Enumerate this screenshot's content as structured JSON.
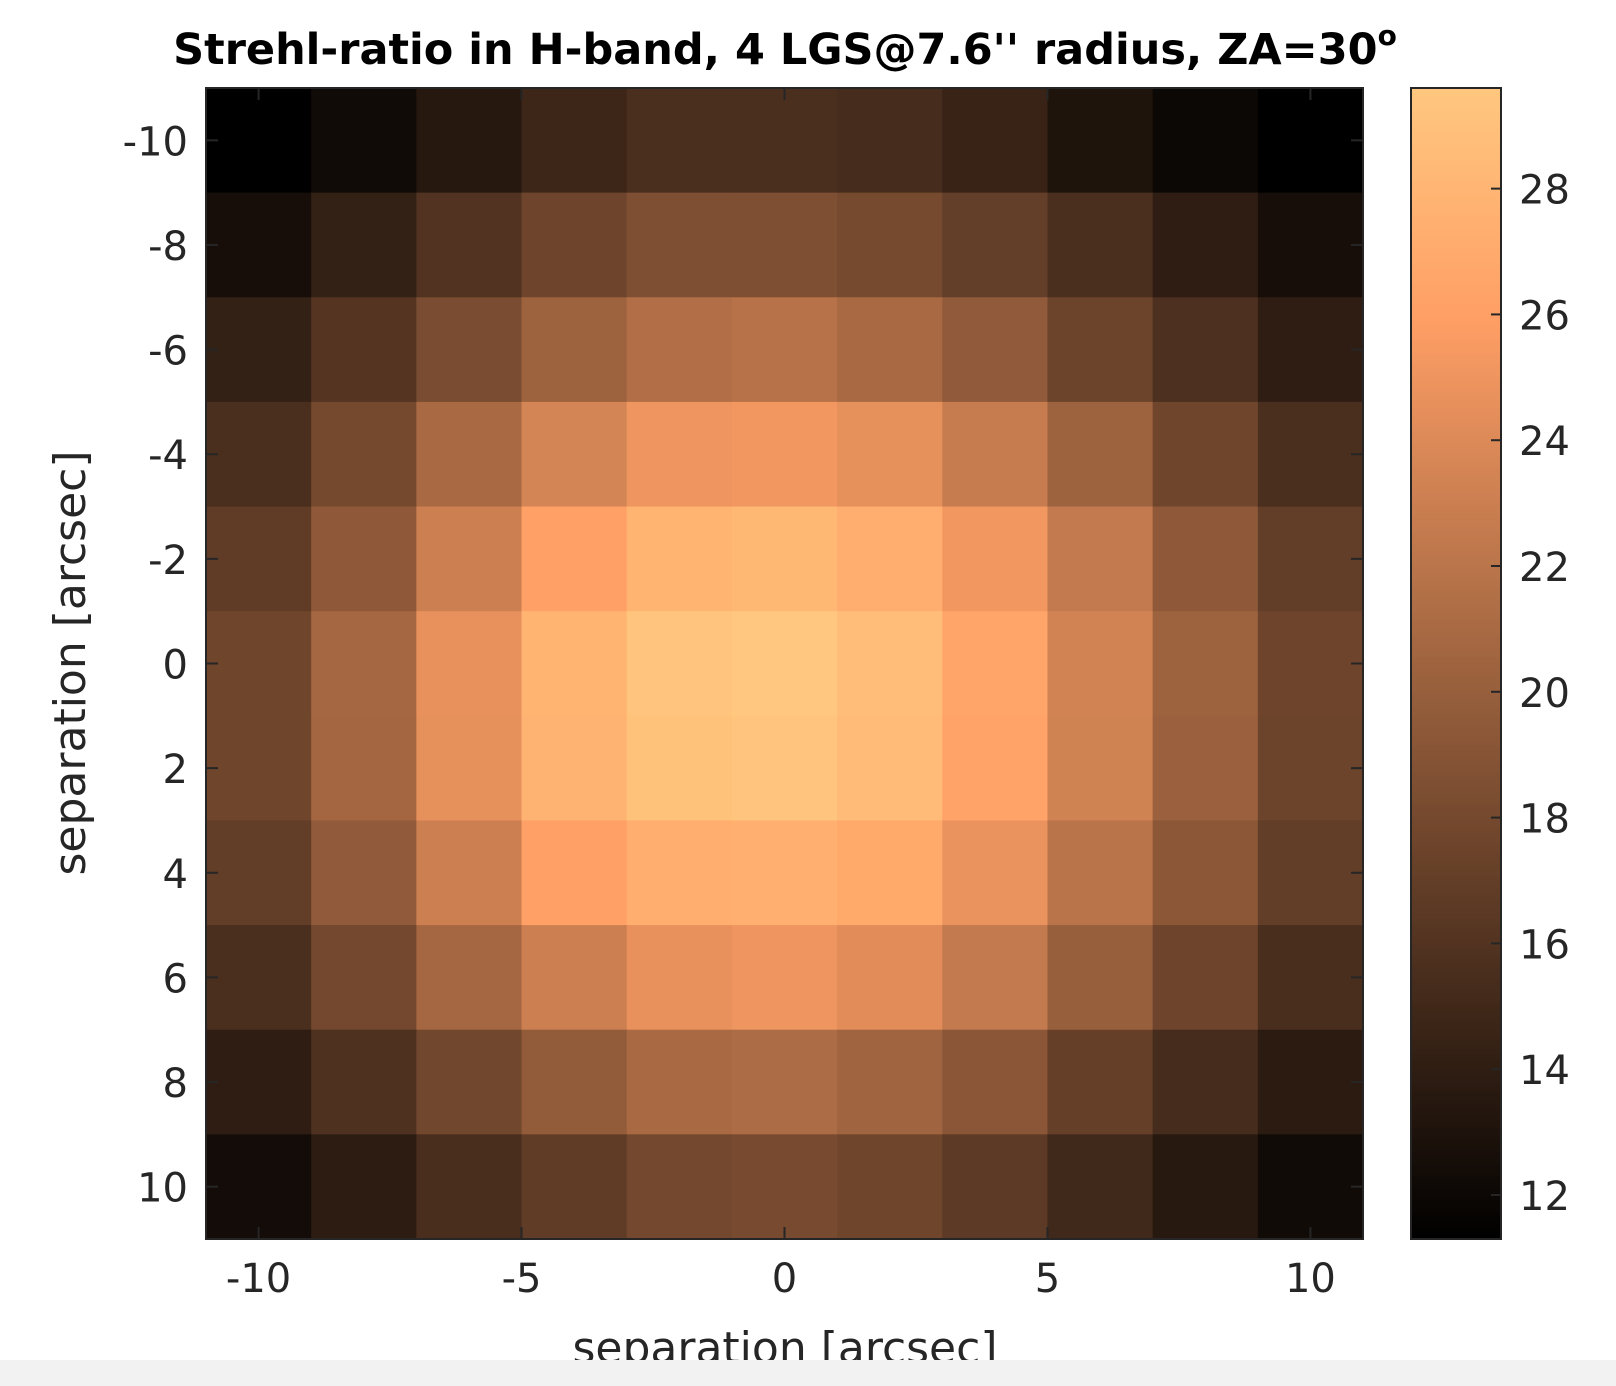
{
  "chart_data": {
    "type": "heatmap",
    "title": "Strehl-ratio in H-band, 4 LGS@7.6'' radius, ZA=30",
    "title_superscript": "o",
    "xlabel": "separation [arcsec]",
    "ylabel": "separation [arcsec]",
    "x": [
      -10,
      -8,
      -6,
      -4,
      -2,
      0,
      2,
      4,
      6,
      8,
      10
    ],
    "y": [
      -10,
      -8,
      -6,
      -4,
      -2,
      0,
      2,
      4,
      6,
      8,
      10
    ],
    "xlim": [
      -11,
      11
    ],
    "ylim": [
      -11,
      11
    ],
    "y_reversed": true,
    "xticks": [
      -10,
      -5,
      0,
      5,
      10
    ],
    "xtick_labels": [
      "-10",
      "-5",
      "0",
      "5",
      "10"
    ],
    "yticks": [
      -10,
      -8,
      -6,
      -4,
      -2,
      0,
      2,
      4,
      6,
      8,
      10
    ],
    "ytick_labels": [
      "-10",
      "-8",
      "-6",
      "-4",
      "-2",
      "0",
      "2",
      "4",
      "6",
      "8",
      "10"
    ],
    "colormap": "copper",
    "colorbar": {
      "clim": [
        11.3,
        29.6
      ],
      "ticks": [
        12,
        14,
        16,
        18,
        20,
        22,
        24,
        26,
        28
      ],
      "tick_labels": [
        "12",
        "14",
        "16",
        "18",
        "20",
        "22",
        "24",
        "26",
        "28"
      ]
    },
    "z": [
      [
        11.3,
        12.3,
        13.5,
        14.8,
        15.6,
        15.6,
        15.3,
        14.5,
        13.1,
        12.0,
        11.3
      ],
      [
        12.6,
        14.3,
        16.0,
        17.6,
        18.6,
        18.6,
        18.1,
        17.0,
        15.6,
        14.0,
        12.6
      ],
      [
        14.3,
        16.2,
        18.3,
        20.3,
        21.5,
        21.8,
        21.0,
        19.6,
        17.5,
        15.7,
        14.0
      ],
      [
        15.6,
        18.0,
        21.0,
        23.5,
        25.0,
        25.2,
        24.5,
        22.7,
        20.3,
        17.7,
        15.6
      ],
      [
        16.8,
        19.5,
        23.0,
        26.0,
        27.8,
        28.1,
        27.3,
        25.2,
        22.5,
        19.5,
        16.9
      ],
      [
        17.7,
        20.8,
        24.6,
        27.8,
        29.3,
        29.6,
        28.7,
        26.5,
        23.3,
        20.3,
        17.6
      ],
      [
        17.7,
        20.7,
        24.5,
        27.7,
        29.1,
        29.3,
        28.5,
        26.3,
        23.2,
        20.2,
        17.5
      ],
      [
        16.9,
        19.6,
        23.0,
        26.0,
        27.3,
        27.5,
        26.8,
        24.8,
        22.0,
        19.3,
        16.9
      ],
      [
        15.6,
        17.9,
        20.8,
        23.0,
        24.6,
        25.0,
        24.2,
        22.5,
        20.0,
        17.6,
        15.5
      ],
      [
        14.0,
        15.8,
        17.8,
        19.7,
        21.0,
        21.2,
        20.5,
        19.2,
        17.1,
        15.3,
        13.8
      ],
      [
        12.4,
        13.9,
        15.5,
        16.8,
        17.9,
        18.2,
        17.7,
        16.6,
        15.0,
        13.6,
        12.3
      ]
    ]
  }
}
